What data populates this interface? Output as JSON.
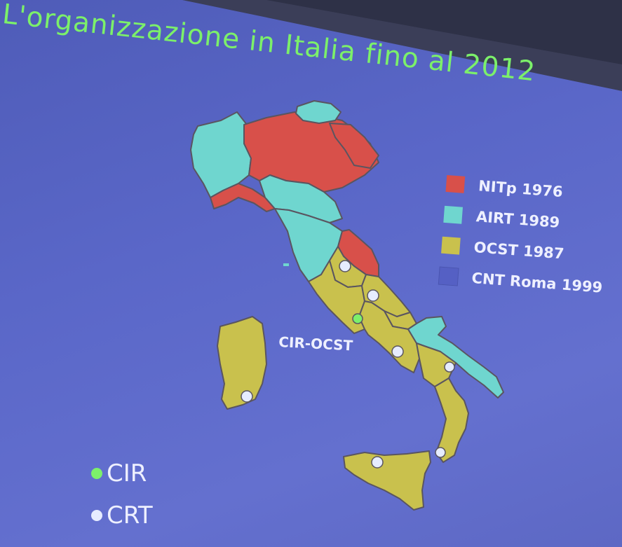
{
  "slide": {
    "title": "L'organizzazione  in Italia fino al 2012",
    "map_label": "CIR-OCST"
  },
  "legend": [
    {
      "label": "NITp 1976",
      "color": "#d8504a"
    },
    {
      "label": "AIRT 1989",
      "color": "#6fd6cf"
    },
    {
      "label": "OCST 1987",
      "color": "#c9c14d"
    },
    {
      "label": "CNT Roma 1999",
      "color": "#5560c4"
    }
  ],
  "key": [
    {
      "label": "CIR",
      "color": "#7cf06a"
    },
    {
      "label": "CRT",
      "color": "#e6ecff"
    }
  ],
  "colors": {
    "background": "#5a66c8",
    "title": "#7cf06a",
    "nitp_region": "#d8504a",
    "airt_region": "#6fd6cf",
    "ocst_region": "#c9c14d",
    "border": "#5a5560"
  }
}
